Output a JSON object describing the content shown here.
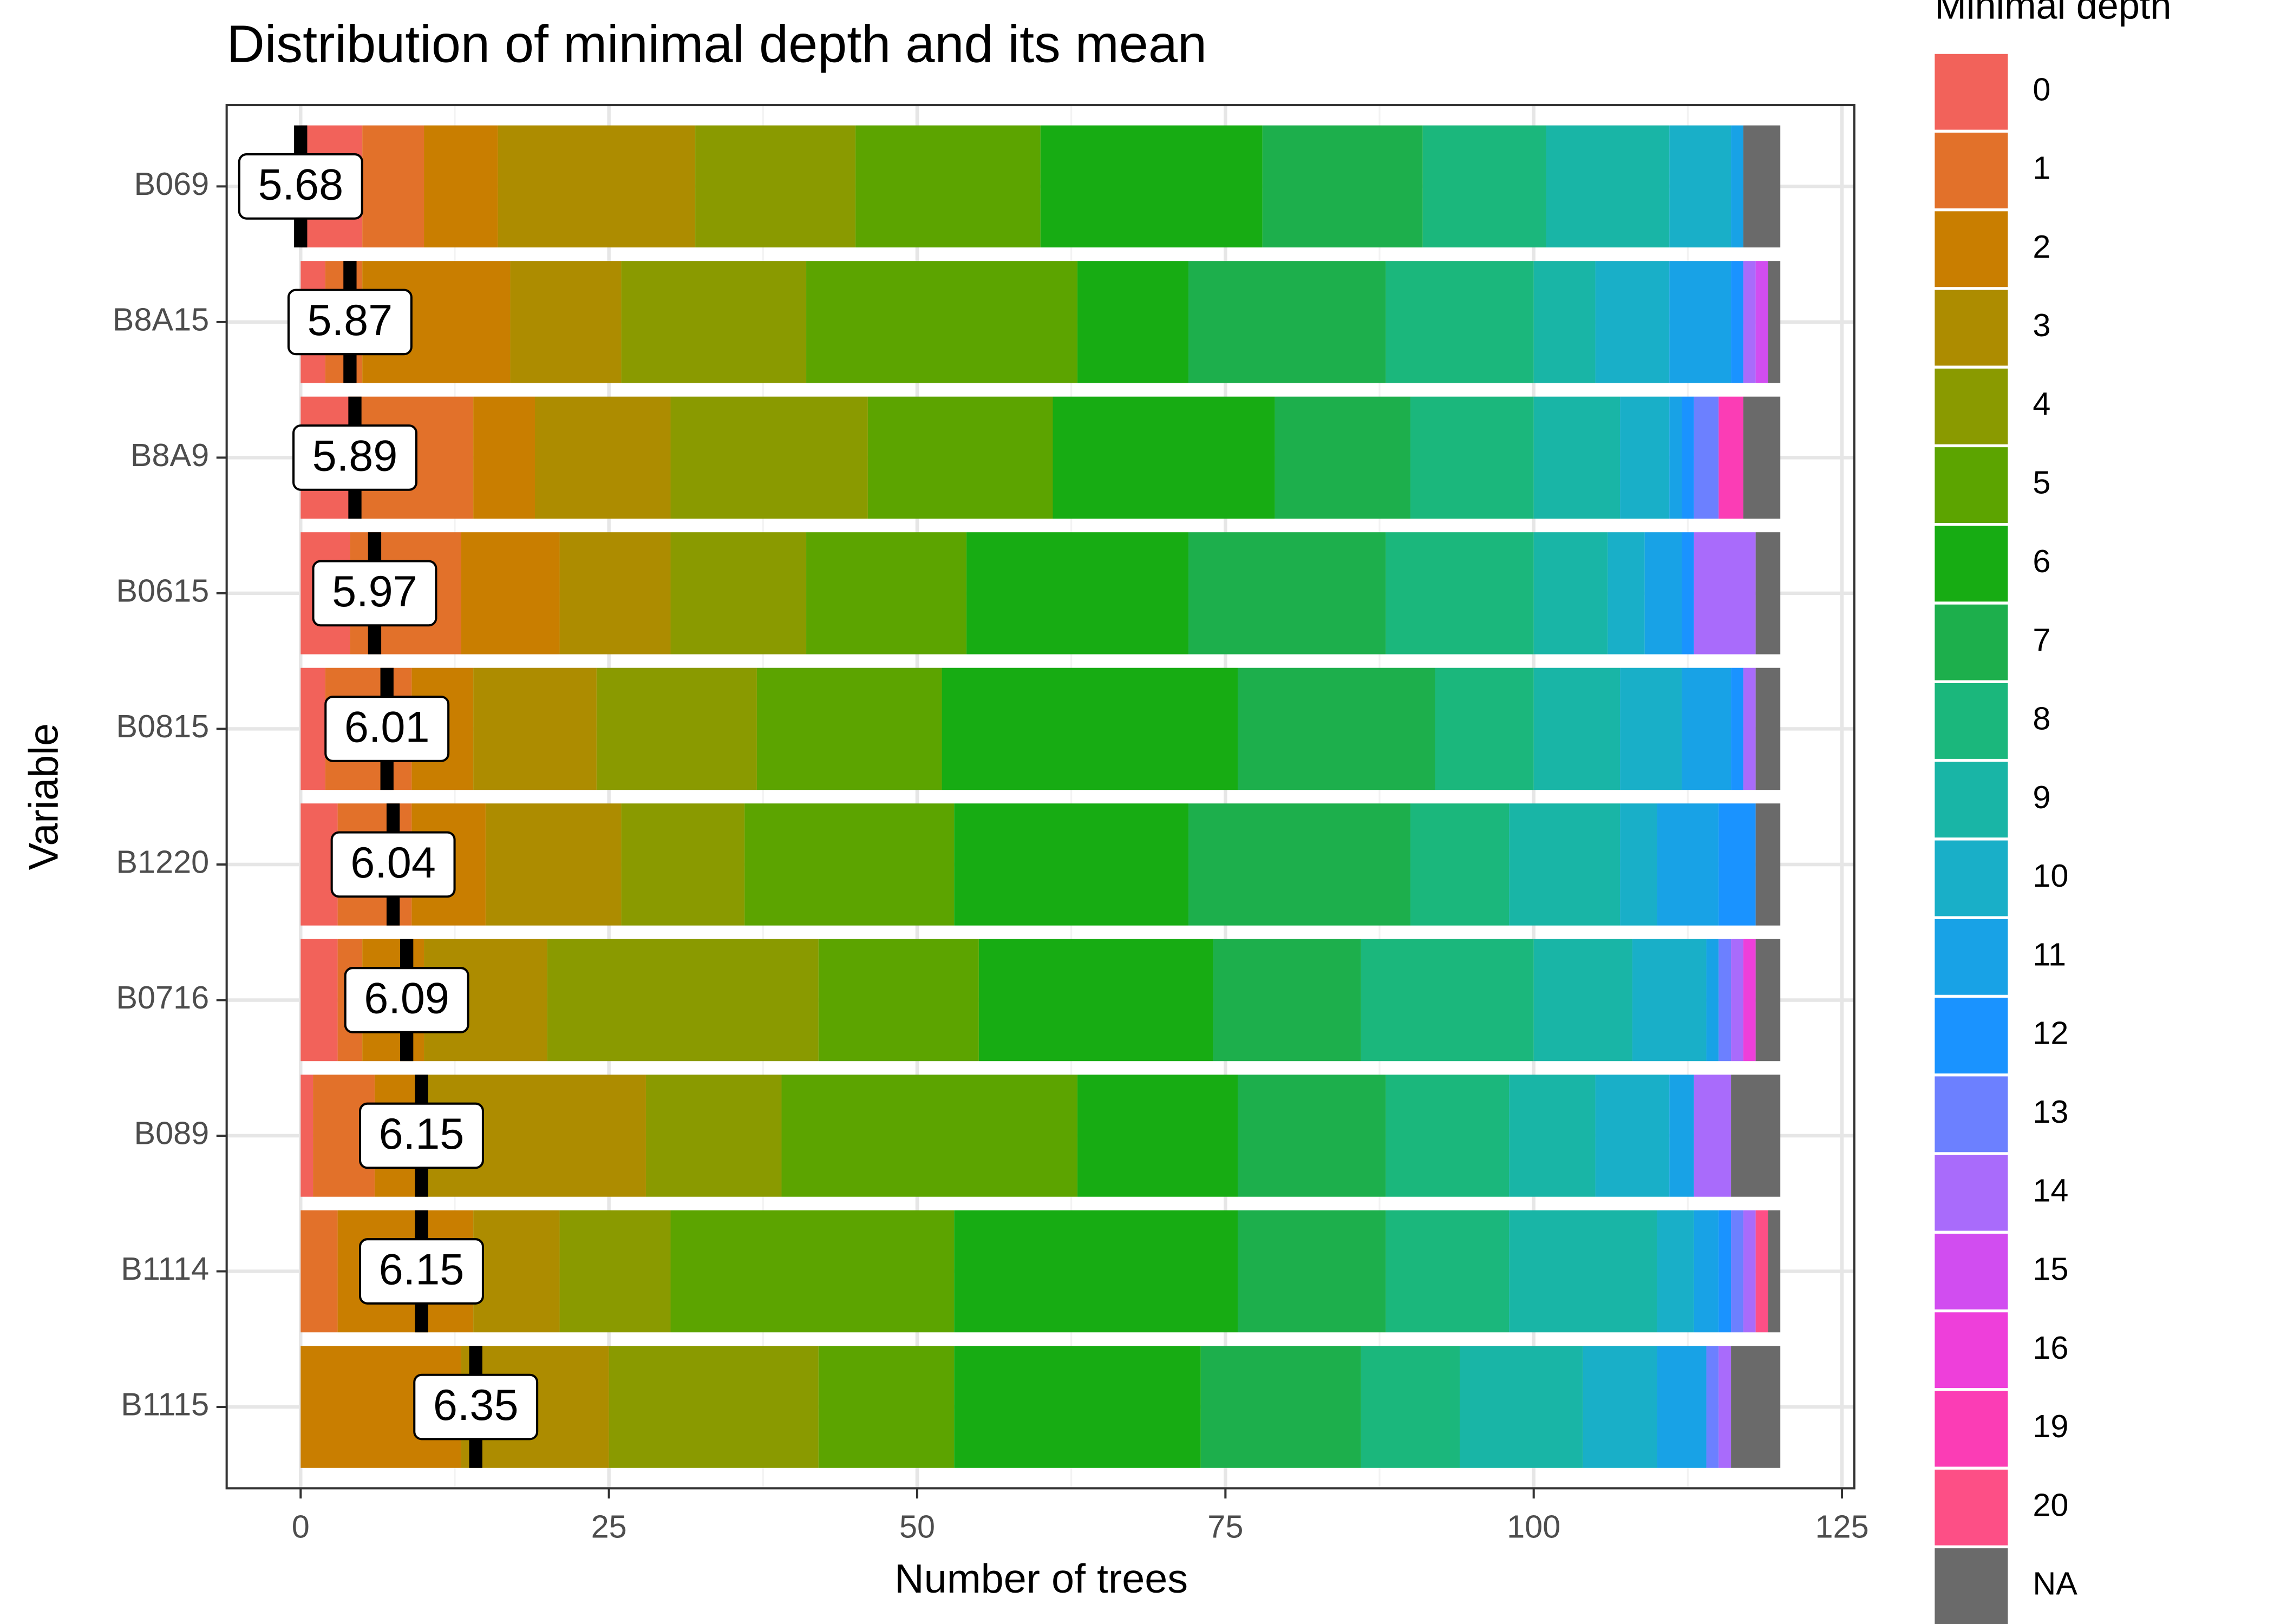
{
  "chart_data": {
    "type": "stacked-bar-horizontal",
    "title": "Distribution of minimal depth and its mean",
    "x_label": "Number of trees",
    "y_label": "Variable",
    "legend_title": "Minimal depth",
    "categories": [
      "B069",
      "B8A15",
      "B8A9",
      "B0615",
      "B0815",
      "B1220",
      "B0716",
      "B089",
      "B1114",
      "B1115"
    ],
    "series": [
      {
        "name": "0",
        "color": "#F2625A",
        "values": [
          5,
          2,
          4,
          4,
          2,
          3,
          3,
          1,
          0,
          0
        ]
      },
      {
        "name": "1",
        "color": "#E2712A",
        "values": [
          5,
          3,
          10,
          9,
          7,
          6,
          2,
          5,
          3,
          0
        ]
      },
      {
        "name": "2",
        "color": "#C97E00",
        "values": [
          6,
          12,
          5,
          8,
          5,
          6,
          5,
          4,
          11,
          13
        ]
      },
      {
        "name": "3",
        "color": "#AD8C00",
        "values": [
          16,
          9,
          11,
          9,
          10,
          11,
          10,
          18,
          7,
          12
        ]
      },
      {
        "name": "4",
        "color": "#8A9A00",
        "values": [
          13,
          15,
          16,
          11,
          13,
          10,
          22,
          11,
          9,
          17
        ]
      },
      {
        "name": "5",
        "color": "#5CA400",
        "values": [
          15,
          22,
          15,
          13,
          15,
          17,
          13,
          24,
          23,
          11
        ]
      },
      {
        "name": "6",
        "color": "#17AC13",
        "values": [
          18,
          9,
          18,
          18,
          24,
          19,
          19,
          13,
          23,
          20
        ]
      },
      {
        "name": "7",
        "color": "#1DAF4C",
        "values": [
          13,
          16,
          11,
          16,
          16,
          18,
          12,
          12,
          12,
          13
        ]
      },
      {
        "name": "8",
        "color": "#1BB77C",
        "values": [
          10,
          12,
          10,
          12,
          8,
          8,
          14,
          10,
          10,
          8
        ]
      },
      {
        "name": "9",
        "color": "#19B5A6",
        "values": [
          10,
          5,
          7,
          6,
          7,
          9,
          8,
          7,
          12,
          10
        ]
      },
      {
        "name": "10",
        "color": "#19AFC8",
        "values": [
          5,
          6,
          4,
          3,
          5,
          3,
          6,
          6,
          3,
          6
        ]
      },
      {
        "name": "11",
        "color": "#18A2E6",
        "values": [
          1,
          5,
          1,
          3,
          4,
          5,
          1,
          2,
          2,
          4
        ]
      },
      {
        "name": "12",
        "color": "#1A93FF",
        "values": [
          0,
          1,
          1,
          1,
          1,
          3,
          0,
          0,
          1,
          0
        ]
      },
      {
        "name": "13",
        "color": "#6C80FF",
        "values": [
          0,
          0,
          2,
          0,
          0,
          0,
          1,
          0,
          1,
          1
        ]
      },
      {
        "name": "14",
        "color": "#A96BFB",
        "values": [
          0,
          1,
          0,
          5,
          1,
          0,
          1,
          3,
          1,
          1
        ]
      },
      {
        "name": "15",
        "color": "#D14DF0",
        "values": [
          0,
          1,
          0,
          0,
          0,
          0,
          0,
          0,
          0,
          0
        ]
      },
      {
        "name": "16",
        "color": "#EE3FDA",
        "values": [
          0,
          0,
          0,
          0,
          0,
          0,
          1,
          0,
          0,
          0
        ]
      },
      {
        "name": "19",
        "color": "#FB3DB5",
        "values": [
          0,
          0,
          2,
          0,
          0,
          0,
          0,
          0,
          0,
          0
        ]
      },
      {
        "name": "20",
        "color": "#FD4F86",
        "values": [
          0,
          0,
          0,
          0,
          0,
          0,
          0,
          0,
          1,
          0
        ]
      },
      {
        "name": "NA",
        "color": "#6A6A6A",
        "values": [
          3,
          1,
          3,
          2,
          2,
          2,
          2,
          4,
          1,
          4
        ]
      }
    ],
    "mean_minimal_depth": {
      "values": [
        5.68,
        5.87,
        5.89,
        5.97,
        6.01,
        6.04,
        6.09,
        6.15,
        6.15,
        6.35
      ],
      "positions": [
        0,
        4,
        4.4,
        6,
        7,
        7.5,
        8.6,
        9.8,
        9.8,
        14.2
      ]
    },
    "xlim": [
      -6,
      126
    ],
    "xticks": [
      0,
      25,
      50,
      75,
      100,
      125
    ],
    "grid": true
  }
}
